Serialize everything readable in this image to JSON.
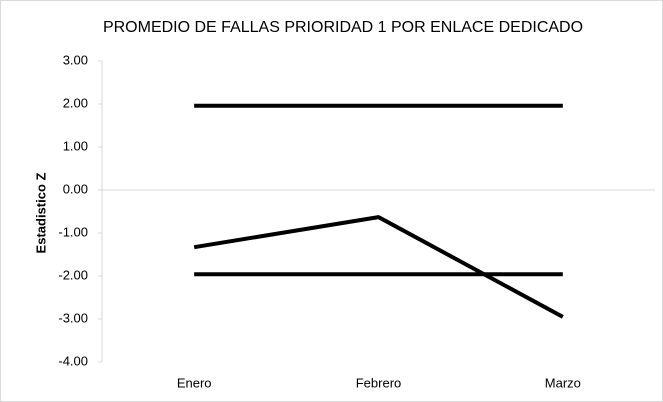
{
  "chart_data": {
    "type": "line",
    "title": "PROMEDIO DE FALLAS PRIORIDAD 1 POR ENLACE DEDICADO",
    "y_label": "Estadistico Z",
    "categories": [
      "Enero",
      "Febrero",
      "Marzo"
    ],
    "series": [
      {
        "color": "#000000",
        "values": [
          1.96,
          1.96,
          1.96
        ]
      },
      {
        "color": "#000000",
        "values": [
          -1.96,
          -1.96,
          -1.96
        ]
      },
      {
        "color": "#000000",
        "values": [
          -1.33,
          -0.63,
          -2.95
        ]
      }
    ],
    "ylim": [
      -4,
      3
    ],
    "yticks": [
      {
        "value": 3,
        "label": "3.00"
      },
      {
        "value": 2,
        "label": "2.00"
      },
      {
        "value": 1,
        "label": "1.00"
      },
      {
        "value": 0,
        "label": "0.00"
      },
      {
        "value": -1,
        "label": "-1.00"
      },
      {
        "value": -2,
        "label": "-2.00"
      },
      {
        "value": -3,
        "label": "-3.00"
      },
      {
        "value": -4,
        "label": "-4.00"
      }
    ],
    "grid": false
  }
}
